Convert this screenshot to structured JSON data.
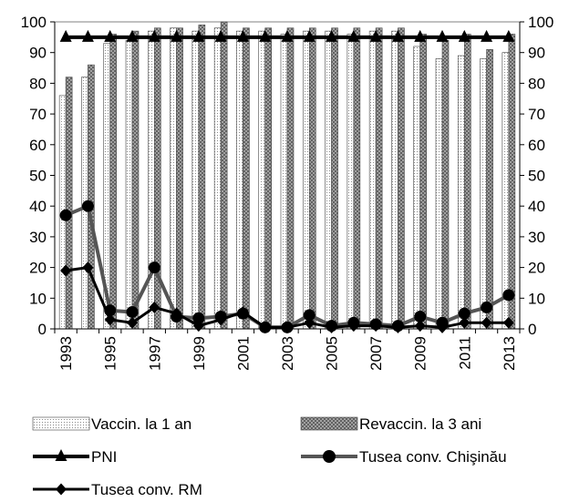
{
  "chart_data": {
    "type": "bar",
    "x": [
      1993,
      1994,
      1995,
      1996,
      1997,
      1998,
      1999,
      2000,
      2001,
      2002,
      2003,
      2004,
      2005,
      2006,
      2007,
      2008,
      2009,
      2010,
      2011,
      2012,
      2013
    ],
    "x_tick_labels": [
      "1993",
      "1995",
      "1997",
      "1999",
      "2001",
      "2003",
      "2005",
      "2007",
      "2009",
      "2011",
      "2013"
    ],
    "y_tick_labels": [
      "0",
      "10",
      "20",
      "30",
      "40",
      "50",
      "60",
      "70",
      "80",
      "90",
      "100"
    ],
    "ylim_left": [
      0,
      100
    ],
    "ylim_right": [
      0,
      100
    ],
    "grid": false,
    "legend_placement": "bottom",
    "bar_series": [
      {
        "name": "Vaccin. la 1 an",
        "pattern": "dots",
        "values": [
          76,
          82,
          93,
          94,
          97,
          98,
          97,
          98,
          97,
          97,
          96,
          97,
          97,
          96,
          97,
          97,
          92,
          88,
          89,
          88,
          90
        ]
      },
      {
        "name": "Revaccin. la 3 ani",
        "pattern": "crosshatch",
        "values": [
          82,
          86,
          96,
          97,
          98,
          98,
          99,
          100,
          98,
          98,
          98,
          98,
          98,
          98,
          98,
          98,
          96,
          94,
          96,
          91,
          96
        ]
      }
    ],
    "line_series": [
      {
        "name": "PNI",
        "marker": "triangle",
        "axis": "left",
        "values": [
          95,
          95,
          95,
          95,
          95,
          95,
          95,
          95,
          95,
          95,
          95,
          95,
          95,
          95,
          95,
          95,
          95,
          95,
          95,
          95,
          95
        ]
      },
      {
        "name": "Tusea conv. Chişinău",
        "marker": "circle",
        "axis": "right",
        "values": [
          37,
          40,
          6,
          5.5,
          20,
          4,
          3.5,
          4,
          5,
          0.5,
          0.5,
          4.5,
          1,
          2,
          1.5,
          1,
          4,
          2,
          5,
          7,
          11
        ]
      },
      {
        "name": "Tusea conv. RM",
        "marker": "diamond",
        "axis": "right",
        "values": [
          19,
          20,
          3,
          2,
          7,
          5,
          1,
          3,
          5.5,
          0.5,
          0.5,
          2,
          0.5,
          1,
          1,
          0.5,
          1,
          0.5,
          2,
          2,
          2
        ]
      }
    ],
    "colors": {
      "bar1_fill": "#ffffff",
      "bar1_dots": "#8a8a8a",
      "bar2_fill": "#b4b4b4",
      "bar2_hatch": "#555555",
      "pni_line": "#000000",
      "chisinau_line": "#555555",
      "chisinau_marker": "#000000",
      "rm_line": "#000000",
      "frame": "#808080"
    }
  }
}
